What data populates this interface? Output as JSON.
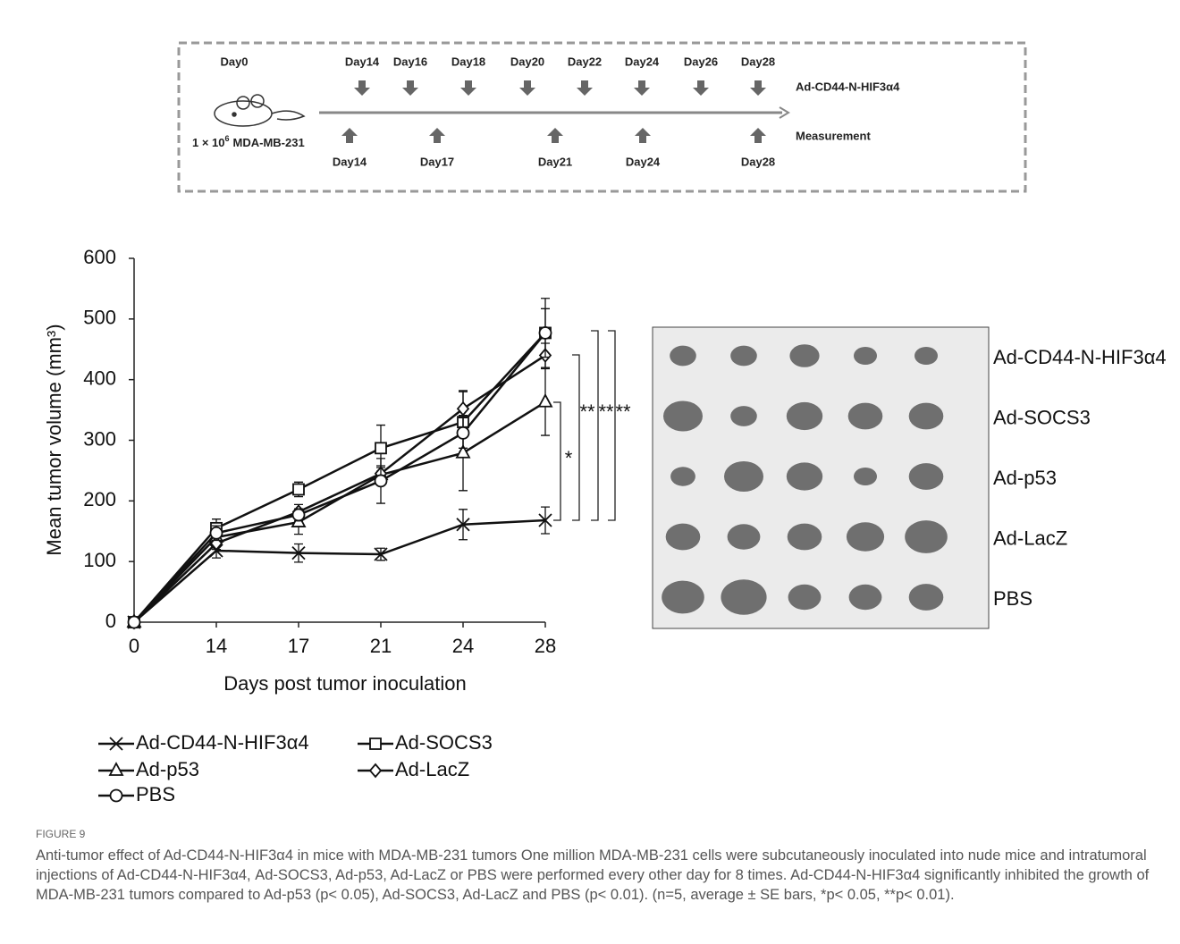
{
  "schematic": {
    "day0": "Day0",
    "cells": "1 × 10",
    "cells_exp": "6",
    "cells_line": "MDA-MB-231",
    "injection_days": [
      "Day14",
      "Day16",
      "Day18",
      "Day20",
      "Day22",
      "Day24",
      "Day26",
      "Day28"
    ],
    "measurement_days": [
      "Day14",
      "Day17",
      "Day21",
      "Day24",
      "Day28"
    ],
    "injection_label": "Ad-CD44-N-HIF3α4",
    "measurement_label": "Measurement"
  },
  "chart_data": {
    "type": "line",
    "ylabel": "Mean tumor volume (mm³)",
    "xlabel": "Days post tumor inoculation",
    "categories": [
      "0",
      "14",
      "17",
      "21",
      "24",
      "28"
    ],
    "ylim": [
      0,
      600
    ],
    "yticks": [
      0,
      100,
      200,
      300,
      400,
      500,
      600
    ],
    "color": "#111111",
    "series": [
      {
        "name": "Ad-CD44-N-HIF3α4",
        "marker": "x",
        "values": [
          0,
          118,
          114,
          112,
          161,
          168
        ],
        "errors": [
          0,
          12,
          15,
          10,
          25,
          22
        ]
      },
      {
        "name": "Ad-SOCS3",
        "marker": "square",
        "values": [
          0,
          155,
          219,
          287,
          330,
          477
        ],
        "errors": [
          0,
          15,
          12,
          38,
          50,
          57
        ]
      },
      {
        "name": "Ad-p53",
        "marker": "triangle",
        "values": [
          0,
          140,
          165,
          243,
          279,
          363
        ],
        "errors": [
          0,
          8,
          20,
          15,
          62,
          55
        ]
      },
      {
        "name": "Ad-LacZ",
        "marker": "diamond",
        "values": [
          0,
          130,
          182,
          245,
          352,
          440
        ],
        "errors": [
          0,
          10,
          12,
          10,
          30,
          20
        ]
      },
      {
        "name": "PBS",
        "marker": "circle",
        "values": [
          0,
          147,
          177,
          233,
          312,
          477
        ],
        "errors": [
          0,
          12,
          10,
          37,
          25,
          40
        ]
      }
    ],
    "annotations": [
      "*",
      "**",
      "**",
      "**"
    ]
  },
  "photo": {
    "rows": [
      "Ad-CD44-N-HIF3α4",
      "Ad-SOCS3",
      "Ad-p53",
      "Ad-LacZ",
      "PBS"
    ]
  },
  "caption": {
    "label": "FIGURE 9",
    "text": "Anti-tumor effect of Ad-CD44-N-HIF3α4 in mice with MDA-MB-231 tumors One million MDA-MB-231 cells were subcutaneously inoculated into nude mice and intratumoral injections of Ad-CD44-N-HIF3α4, Ad-SOCS3, Ad-p53, Ad-LacZ or PBS were performed every other day for 8 times. Ad-CD44-N-HIF3α4 significantly inhibited the growth of MDA-MB-231 tumors compared to Ad-p53 (p< 0.05), Ad-SOCS3, Ad-LacZ and PBS (p< 0.01). (n=5, average ± SE bars, *p< 0.05, **p< 0.01)."
  }
}
